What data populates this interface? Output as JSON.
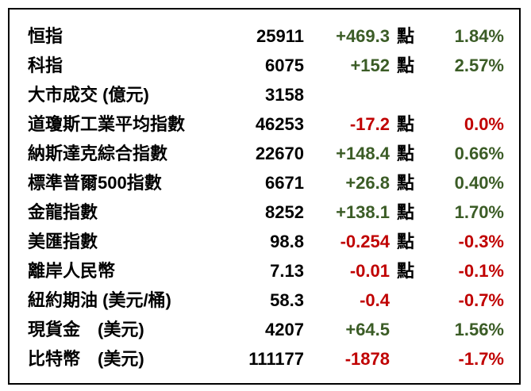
{
  "table": {
    "colors": {
      "up": "#3b5c26",
      "down": "#c00000",
      "neutral": "#000000",
      "border": "#000000",
      "background": "#ffffff"
    },
    "unit_suffix": "點",
    "rows": [
      {
        "label": "恒指",
        "value": "25911",
        "change": "+469.3",
        "change_dir": "up",
        "unit": "點",
        "percent": "1.84%",
        "percent_dir": "up"
      },
      {
        "label": "科指",
        "value": "6075",
        "change": "+152",
        "change_dir": "up",
        "unit": "點",
        "percent": "2.57%",
        "percent_dir": "up"
      },
      {
        "label": "大市成交 (億元)",
        "value": "3158",
        "change": "",
        "change_dir": "",
        "unit": "",
        "percent": "",
        "percent_dir": ""
      },
      {
        "label": "道瓊斯工業平均指數",
        "value": "46253",
        "change": "-17.2",
        "change_dir": "down",
        "unit": "點",
        "percent": "0.0%",
        "percent_dir": "down"
      },
      {
        "label": "納斯達克綜合指數",
        "value": "22670",
        "change": "+148.4",
        "change_dir": "up",
        "unit": "點",
        "percent": "0.66%",
        "percent_dir": "up"
      },
      {
        "label": "標準普爾500指數",
        "value": "6671",
        "change": "+26.8",
        "change_dir": "up",
        "unit": "點",
        "percent": "0.40%",
        "percent_dir": "up"
      },
      {
        "label": "金龍指數",
        "value": "8252",
        "change": "+138.1",
        "change_dir": "up",
        "unit": "點",
        "percent": "1.70%",
        "percent_dir": "up"
      },
      {
        "label": "美匯指數",
        "value": "98.8",
        "change": "-0.254",
        "change_dir": "down",
        "unit": "點",
        "percent": "-0.3%",
        "percent_dir": "down"
      },
      {
        "label": "離岸人民幣",
        "value": "7.13",
        "change": "-0.01",
        "change_dir": "down",
        "unit": "點",
        "percent": "-0.1%",
        "percent_dir": "down"
      },
      {
        "label": "紐約期油 (美元/桶)",
        "value": "58.3",
        "change": "-0.4",
        "change_dir": "down",
        "unit": "",
        "percent": "-0.7%",
        "percent_dir": "down"
      },
      {
        "label": "現貨金　(美元)",
        "value": "4207",
        "change": "+64.5",
        "change_dir": "up",
        "unit": "",
        "percent": "1.56%",
        "percent_dir": "up"
      },
      {
        "label": "比特幣　(美元)",
        "value": "111177",
        "change": "-1878",
        "change_dir": "down",
        "unit": "",
        "percent": "-1.7%",
        "percent_dir": "down"
      }
    ]
  }
}
